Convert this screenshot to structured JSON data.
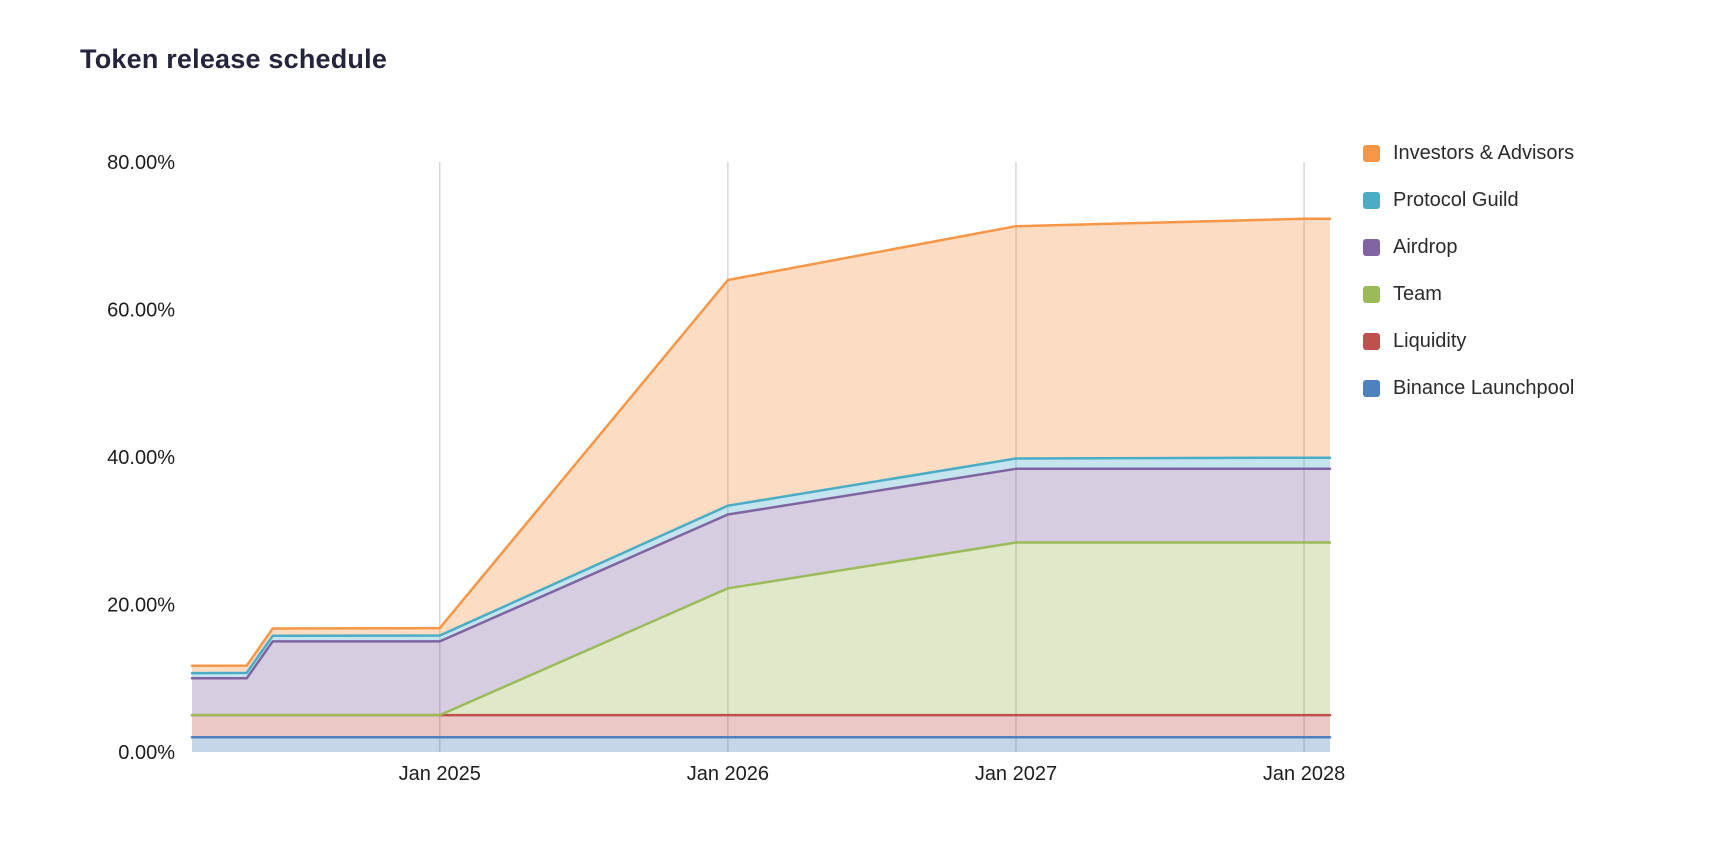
{
  "page": {
    "background": "#ffffff"
  },
  "chart_data": {
    "type": "area",
    "stacked": true,
    "title": "Token release schedule",
    "legend_position": "right",
    "grid": "vertical",
    "grid_color": "#d6d6d6",
    "axis_text_color": "#1c1c1c",
    "title_color": "#24243c",
    "fill_opacity": 0.32,
    "line_width": 2.5,
    "x_unit": "decimal_year",
    "x_range": [
      2024.14,
      2028.09
    ],
    "ylim": [
      0,
      80
    ],
    "y_unit": "percent_of_supply_unlocked",
    "x": [
      2024.14,
      2024.33,
      2024.42,
      2025.0,
      2026.0,
      2027.0,
      2028.0,
      2028.09
    ],
    "x_ticks": [
      {
        "value": 2025.0,
        "label": "Jan 2025"
      },
      {
        "value": 2026.0,
        "label": "Jan 2026"
      },
      {
        "value": 2027.0,
        "label": "Jan 2027"
      },
      {
        "value": 2028.0,
        "label": "Jan 2028"
      }
    ],
    "y_ticks": [
      {
        "value": 0,
        "label": "0.00%"
      },
      {
        "value": 20,
        "label": "20.00%"
      },
      {
        "value": 40,
        "label": "40.00%"
      },
      {
        "value": 60,
        "label": "60.00%"
      },
      {
        "value": 80,
        "label": "80.00%"
      }
    ],
    "series": [
      {
        "name": "Binance Launchpool",
        "color": "#4F81BD",
        "values": [
          2,
          2,
          2,
          2,
          2,
          2,
          2,
          2
        ]
      },
      {
        "name": "Liquidity",
        "color": "#C0504D",
        "values": [
          3,
          3,
          3,
          3,
          3,
          3,
          3,
          3
        ]
      },
      {
        "name": "Team",
        "color": "#9BBB59",
        "values": [
          0,
          0,
          0,
          0,
          17.2,
          23.4,
          23.4,
          23.4
        ]
      },
      {
        "name": "Airdrop",
        "color": "#8064A2",
        "values": [
          5,
          5,
          10,
          10,
          10,
          10,
          10,
          10
        ]
      },
      {
        "name": "Protocol Guild",
        "color": "#4BACC6",
        "values": [
          0.7,
          0.72,
          0.75,
          0.8,
          1.2,
          1.4,
          1.5,
          1.5
        ]
      },
      {
        "name": "Investors & Advisors",
        "color": "#F79646",
        "values": [
          1,
          1,
          1,
          1,
          30.6,
          31.5,
          32.4,
          32.4
        ]
      }
    ],
    "legend": [
      "Investors & Advisors",
      "Protocol Guild",
      "Airdrop",
      "Team",
      "Liquidity",
      "Binance Launchpool"
    ]
  }
}
